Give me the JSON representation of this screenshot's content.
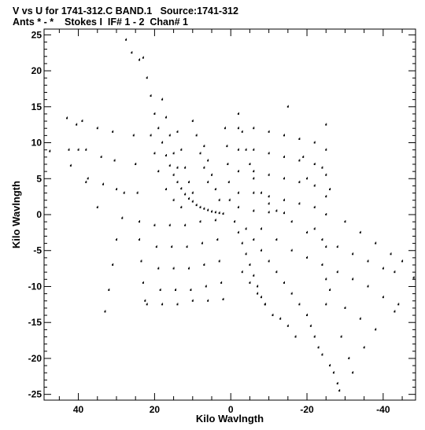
{
  "header": {
    "line1": "V vs U for 1741-312.C BAND.1   Source:1741-312",
    "line2": "Ants * - *    Stokes I  IF# 1 - 2  Chan# 1"
  },
  "chart_data": {
    "type": "scatter",
    "title": "V vs U for 1741-312.C BAND.1   Source:1741-312",
    "subtitle": "Ants * - *    Stokes I  IF# 1 - 2  Chan# 1",
    "xlabel": "Kilo Wavlngth",
    "ylabel": "Kilo Wavlngth",
    "xlim": [
      49,
      -48.5
    ],
    "ylim": [
      -25.8,
      25.8
    ],
    "x_ticks": [
      40,
      20,
      0,
      -20,
      -40
    ],
    "x_tick_labels": [
      "40",
      "20",
      "0",
      "-20",
      "-40"
    ],
    "y_ticks": [
      25,
      20,
      15,
      10,
      5,
      0,
      -5,
      -10,
      -15,
      -20,
      -25
    ],
    "y_tick_labels": [
      "25",
      "20",
      "15",
      "10",
      "5",
      "0",
      "-5",
      "-10",
      "-15",
      "-20",
      "-25"
    ],
    "grid": false,
    "marker_color": "#000000",
    "series": [
      {
        "values": [
          [
            47.5,
            8.8
          ],
          [
            43.0,
            13.4
          ],
          [
            42.5,
            9.0
          ],
          [
            42.0,
            6.8
          ],
          [
            39.0,
            13.0
          ],
          [
            38.0,
            9.0
          ],
          [
            37.5,
            5.0
          ],
          [
            35.0,
            12.0
          ],
          [
            34.0,
            8.0
          ],
          [
            33.5,
            4.2
          ],
          [
            31.0,
            11.5
          ],
          [
            30.5,
            7.5
          ],
          [
            30.0,
            3.5
          ],
          [
            27.5,
            24.3
          ],
          [
            26.0,
            22.5
          ],
          [
            25.5,
            11.0
          ],
          [
            25.0,
            7.0
          ],
          [
            24.5,
            3.0
          ],
          [
            24.0,
            21.5
          ],
          [
            23.0,
            21.8
          ],
          [
            22.0,
            19.0
          ],
          [
            21.0,
            16.5
          ],
          [
            20.0,
            14.0
          ],
          [
            19.0,
            12.0
          ],
          [
            18.0,
            10.0
          ],
          [
            17.0,
            8.2
          ],
          [
            16.0,
            6.8
          ],
          [
            15.0,
            5.5
          ],
          [
            14.0,
            4.5
          ],
          [
            13.0,
            3.6
          ],
          [
            12.0,
            2.8
          ],
          [
            11.0,
            2.2
          ],
          [
            10.0,
            1.8
          ],
          [
            9.0,
            1.3
          ],
          [
            8.0,
            1.0
          ],
          [
            7.0,
            0.8
          ],
          [
            6.0,
            0.6
          ],
          [
            5.0,
            0.4
          ],
          [
            4.0,
            0.3
          ],
          [
            3.0,
            0.2
          ],
          [
            2.0,
            0.1
          ],
          [
            21.0,
            11.0
          ],
          [
            20.0,
            8.5
          ],
          [
            19.0,
            6.0
          ],
          [
            17.0,
            3.5
          ],
          [
            15.0,
            2.0
          ],
          [
            13.0,
            1.0
          ],
          [
            24.0,
            -1.0
          ],
          [
            24.0,
            -3.5
          ],
          [
            23.5,
            -6.5
          ],
          [
            23.0,
            -9.5
          ],
          [
            22.5,
            -12.0
          ],
          [
            22.0,
            -12.5
          ],
          [
            20.0,
            -1.5
          ],
          [
            19.5,
            -4.5
          ],
          [
            19.0,
            -7.5
          ],
          [
            18.5,
            -10.5
          ],
          [
            18.0,
            -12.5
          ],
          [
            16.0,
            -1.5
          ],
          [
            15.5,
            -4.5
          ],
          [
            15.0,
            -7.5
          ],
          [
            14.5,
            -10.5
          ],
          [
            14.0,
            -12.5
          ],
          [
            12.0,
            -1.5
          ],
          [
            11.5,
            -4.5
          ],
          [
            11.0,
            -7.5
          ],
          [
            10.5,
            -10.5
          ],
          [
            10.0,
            -12.0
          ],
          [
            8.0,
            -1.0
          ],
          [
            7.5,
            -4.0
          ],
          [
            7.0,
            -7.0
          ],
          [
            6.5,
            -10.0
          ],
          [
            6.0,
            -12.0
          ],
          [
            4.0,
            -0.8
          ],
          [
            3.5,
            -3.5
          ],
          [
            3.0,
            -6.5
          ],
          [
            2.5,
            -9.5
          ],
          [
            2.0,
            -11.8
          ],
          [
            7.0,
            9.5
          ],
          [
            6.0,
            7.5
          ],
          [
            5.0,
            5.5
          ],
          [
            4.0,
            3.5
          ],
          [
            3.0,
            2.0
          ],
          [
            10.0,
            13.0
          ],
          [
            9.0,
            11.0
          ],
          [
            8.0,
            8.5
          ],
          [
            7.0,
            6.5
          ],
          [
            6.0,
            4.5
          ],
          [
            14.0,
            11.5
          ],
          [
            13.0,
            9.0
          ],
          [
            12.0,
            6.5
          ],
          [
            11.0,
            4.5
          ],
          [
            10.0,
            3.0
          ],
          [
            18.0,
            16.0
          ],
          [
            17.0,
            13.5
          ],
          [
            16.0,
            11.0
          ],
          [
            15.0,
            8.5
          ],
          [
            14.0,
            6.5
          ],
          [
            1.5,
            12.0
          ],
          [
            1.0,
            9.5
          ],
          [
            0.8,
            7.0
          ],
          [
            0.5,
            4.5
          ],
          [
            0.3,
            2.0
          ],
          [
            -2.0,
            12.0
          ],
          [
            -2.0,
            9.0
          ],
          [
            -2.0,
            6.0
          ],
          [
            -2.0,
            3.0
          ],
          [
            -2.0,
            1.0
          ],
          [
            -6.0,
            12.0
          ],
          [
            -6.0,
            9.0
          ],
          [
            -6.0,
            6.0
          ],
          [
            -6.0,
            3.0
          ],
          [
            -6.0,
            0.5
          ],
          [
            -10.0,
            11.5
          ],
          [
            -10.0,
            8.5
          ],
          [
            -10.0,
            5.5
          ],
          [
            -10.0,
            2.5
          ],
          [
            -10.0,
            0.3
          ],
          [
            -14.0,
            11.0
          ],
          [
            -14.0,
            8.0
          ],
          [
            -14.0,
            5.0
          ],
          [
            -14.0,
            2.0
          ],
          [
            -14.0,
            0.2
          ],
          [
            -18.0,
            10.5
          ],
          [
            -18.0,
            7.5
          ],
          [
            -18.0,
            4.5
          ],
          [
            -18.0,
            1.5
          ],
          [
            -22.0,
            10.0
          ],
          [
            -22.0,
            7.0
          ],
          [
            -22.0,
            4.0
          ],
          [
            -22.0,
            1.0
          ],
          [
            -25.0,
            12.5
          ],
          [
            -25.0,
            9.0
          ],
          [
            -25.0,
            5.5
          ],
          [
            -25.0,
            2.5
          ],
          [
            -25.0,
            0.0
          ],
          [
            -1.0,
            -1.0
          ],
          [
            -2.0,
            -2.5
          ],
          [
            -3.0,
            -4.0
          ],
          [
            -4.0,
            -5.5
          ],
          [
            -5.0,
            -7.0
          ],
          [
            -6.0,
            -8.5
          ],
          [
            -7.0,
            -10.0
          ],
          [
            -8.0,
            -11.5
          ],
          [
            -9.0,
            -12.5
          ],
          [
            -4.0,
            -2.0
          ],
          [
            -6.0,
            -3.5
          ],
          [
            -8.0,
            -5.0
          ],
          [
            -10.0,
            -6.5
          ],
          [
            -12.0,
            -8.0
          ],
          [
            -14.0,
            -9.5
          ],
          [
            -16.0,
            -11.0
          ],
          [
            -18.0,
            -12.5
          ],
          [
            -20.0,
            -14.0
          ],
          [
            -21.0,
            -15.5
          ],
          [
            -22.0,
            -17.0
          ],
          [
            -23.0,
            -18.5
          ],
          [
            -24.0,
            -19.5
          ],
          [
            -26.0,
            -21.0
          ],
          [
            -27.0,
            -22.0
          ],
          [
            -28.0,
            -23.5
          ],
          [
            -28.5,
            -24.5
          ],
          [
            -3.0,
            -8.0
          ],
          [
            -5.0,
            -9.5
          ],
          [
            -7.0,
            -11.0
          ],
          [
            -9.0,
            -12.5
          ],
          [
            -11.0,
            -14.0
          ],
          [
            -13.0,
            -14.5
          ],
          [
            -15.0,
            -15.5
          ],
          [
            -17.0,
            -17.0
          ],
          [
            -8.0,
            -2.0
          ],
          [
            -12.0,
            -3.5
          ],
          [
            -16.0,
            -5.0
          ],
          [
            -20.0,
            -6.0
          ],
          [
            -24.0,
            -7.0
          ],
          [
            -28.0,
            -8.0
          ],
          [
            -32.0,
            -9.0
          ],
          [
            -36.0,
            -10.0
          ],
          [
            -40.0,
            -11.5
          ],
          [
            -44.0,
            -12.5
          ],
          [
            -12.0,
            0.5
          ],
          [
            -16.0,
            -1.0
          ],
          [
            -20.0,
            -2.5
          ],
          [
            -24.0,
            -3.5
          ],
          [
            -28.0,
            -4.5
          ],
          [
            -32.0,
            -5.5
          ],
          [
            -36.0,
            -6.5
          ],
          [
            -40.0,
            -7.5
          ],
          [
            -43.0,
            -8.0
          ],
          [
            -48.0,
            -8.8
          ],
          [
            -30.0,
            -1.0
          ],
          [
            -34.0,
            -2.5
          ],
          [
            -38.0,
            -4.0
          ],
          [
            -42.0,
            -5.5
          ],
          [
            -45.0,
            -6.5
          ],
          [
            -43.0,
            -13.5
          ],
          [
            -20.0,
            5.0
          ],
          [
            -24.0,
            6.5
          ],
          [
            -26.0,
            3.5
          ],
          [
            -22.0,
            -2.0
          ],
          [
            -26.0,
            -10.5
          ],
          [
            -30.0,
            -13.0
          ],
          [
            -34.0,
            -14.5
          ],
          [
            -38.0,
            -16.0
          ],
          [
            -19.0,
            8.0
          ],
          [
            -15.0,
            15.0
          ],
          [
            -2.0,
            14.0
          ],
          [
            -3.0,
            11.5
          ],
          [
            -4.0,
            9.0
          ],
          [
            -5.0,
            7.0
          ],
          [
            -6.0,
            5.0
          ],
          [
            -8.0,
            3.0
          ],
          [
            -10.0,
            1.5
          ],
          [
            -25.0,
            -4.5
          ],
          [
            -25.0,
            -9.0
          ],
          [
            -25.0,
            -12.5
          ],
          [
            -29.0,
            -17.0
          ],
          [
            -31.0,
            -20.0
          ],
          [
            -32.0,
            -22.0
          ],
          [
            -35.0,
            -18.5
          ],
          [
            28.0,
            3.0
          ],
          [
            28.5,
            -0.5
          ],
          [
            30.0,
            -3.5
          ],
          [
            31.0,
            -7.0
          ],
          [
            32.0,
            -10.5
          ],
          [
            33.0,
            -13.5
          ],
          [
            35.0,
            1.0
          ],
          [
            38.0,
            4.5
          ],
          [
            40.0,
            9.0
          ],
          [
            40.5,
            12.5
          ]
        ]
      }
    ]
  }
}
